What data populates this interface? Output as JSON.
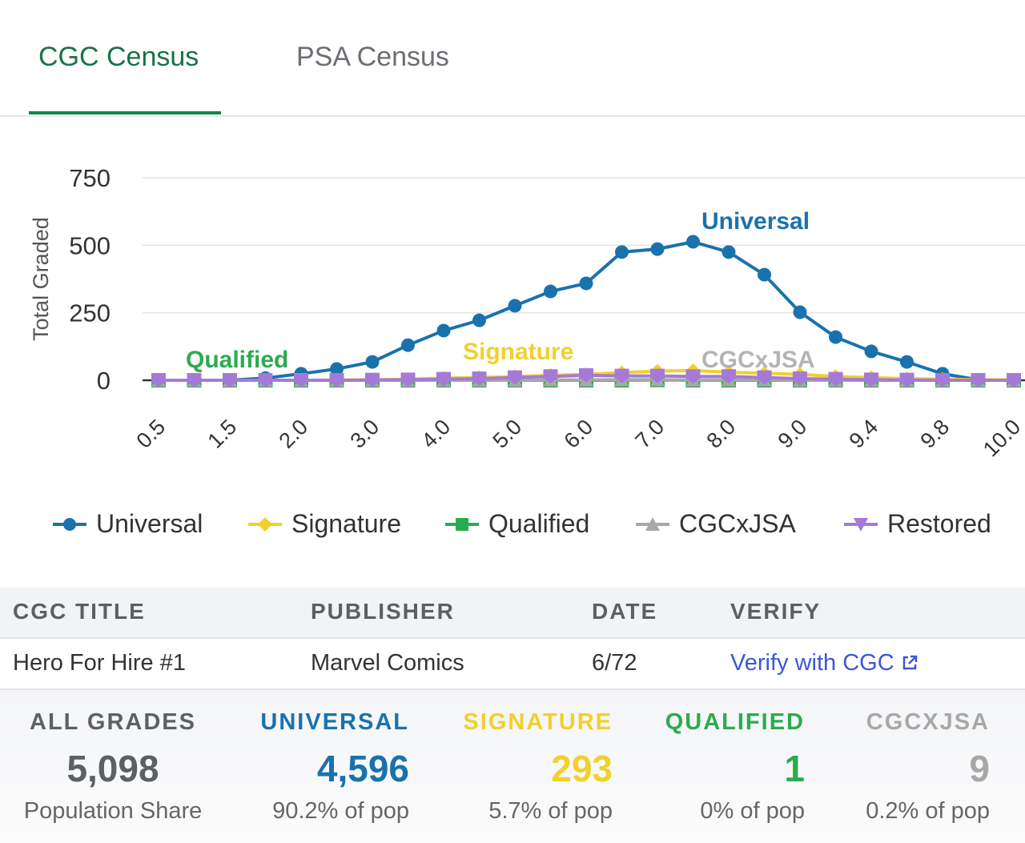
{
  "tabs": [
    {
      "label": "CGC Census",
      "active": true
    },
    {
      "label": "PSA Census",
      "active": false
    }
  ],
  "chart_data": {
    "type": "line",
    "ylabel": "Total Graded",
    "xlabel": "",
    "ylim": [
      0,
      750
    ],
    "yticks": [
      0,
      250,
      500,
      750
    ],
    "grid": true,
    "legend_position": "bottom",
    "categories": [
      "0.5",
      "1.0",
      "1.5",
      "1.8",
      "2.0",
      "2.5",
      "3.0",
      "3.5",
      "4.0",
      "4.5",
      "5.0",
      "5.5",
      "6.0",
      "6.5",
      "7.0",
      "7.5",
      "8.0",
      "8.5",
      "9.0",
      "9.2",
      "9.4",
      "9.6",
      "9.8",
      "9.9",
      "10.0"
    ],
    "xtick_labels": [
      "0.5",
      "1.5",
      "2.0",
      "3.0",
      "4.0",
      "5.0",
      "6.0",
      "7.0",
      "8.0",
      "9.0",
      "9.4",
      "9.8",
      "10.0"
    ],
    "series": [
      {
        "name": "Universal",
        "color": "#1a72ad",
        "marker": "circle",
        "values": [
          0,
          0,
          0,
          8,
          24,
          42,
          68,
          130,
          184,
          222,
          276,
          329,
          359,
          475,
          486,
          513,
          475,
          391,
          252,
          160,
          107,
          68,
          24,
          2,
          0
        ]
      },
      {
        "name": "Signature",
        "color": "#f1d02c",
        "marker": "diamond",
        "values": [
          0,
          0,
          0,
          0,
          0,
          1,
          2,
          4,
          8,
          10,
          14,
          18,
          22,
          28,
          34,
          36,
          30,
          26,
          22,
          14,
          10,
          6,
          4,
          2,
          2
        ]
      },
      {
        "name": "Qualified",
        "color": "#2bab4f",
        "marker": "square",
        "values": [
          0,
          0,
          0,
          0,
          0,
          0,
          0,
          0,
          0,
          0,
          0,
          0,
          0,
          0,
          1,
          0,
          0,
          0,
          0,
          0,
          0,
          0,
          0,
          0,
          0
        ]
      },
      {
        "name": "CGCxJSA",
        "color": "#a8a8a8",
        "marker": "triangle",
        "values": [
          0,
          0,
          0,
          0,
          0,
          0,
          0,
          0,
          0,
          0,
          0,
          1,
          1,
          2,
          2,
          1,
          1,
          1,
          0,
          0,
          0,
          0,
          0,
          0,
          0
        ]
      },
      {
        "name": "Restored",
        "color": "#a57ad6",
        "marker": "triangle-down",
        "values": [
          0,
          0,
          0,
          0,
          0,
          0,
          1,
          2,
          4,
          6,
          10,
          14,
          18,
          16,
          16,
          14,
          14,
          10,
          6,
          4,
          2,
          1,
          0,
          0,
          0
        ]
      }
    ],
    "annotations": [
      "Universal",
      "Signature",
      "Qualified",
      "CGCxJSA"
    ]
  },
  "table": {
    "headers": [
      "CGC TITLE",
      "PUBLISHER",
      "DATE",
      "VERIFY"
    ],
    "row": {
      "title": "Hero For Hire #1",
      "publisher": "Marvel Comics",
      "date": "6/72",
      "verify": "Verify with CGC"
    }
  },
  "stats": [
    {
      "label": "ALL GRADES",
      "value": "5,098",
      "sub": "Population Share",
      "color": "#5b6066"
    },
    {
      "label": "UNIVERSAL",
      "value": "4,596",
      "sub": "90.2% of pop",
      "color": "#1a72ad"
    },
    {
      "label": "SIGNATURE",
      "value": "293",
      "sub": "5.7% of pop",
      "color": "#f1d02c"
    },
    {
      "label": "QUALIFIED",
      "value": "1",
      "sub": "0% of pop",
      "color": "#2bab4f"
    },
    {
      "label": "CGCXJSA",
      "value": "9",
      "sub": "0.2% of pop",
      "color": "#a8a8a8"
    }
  ]
}
